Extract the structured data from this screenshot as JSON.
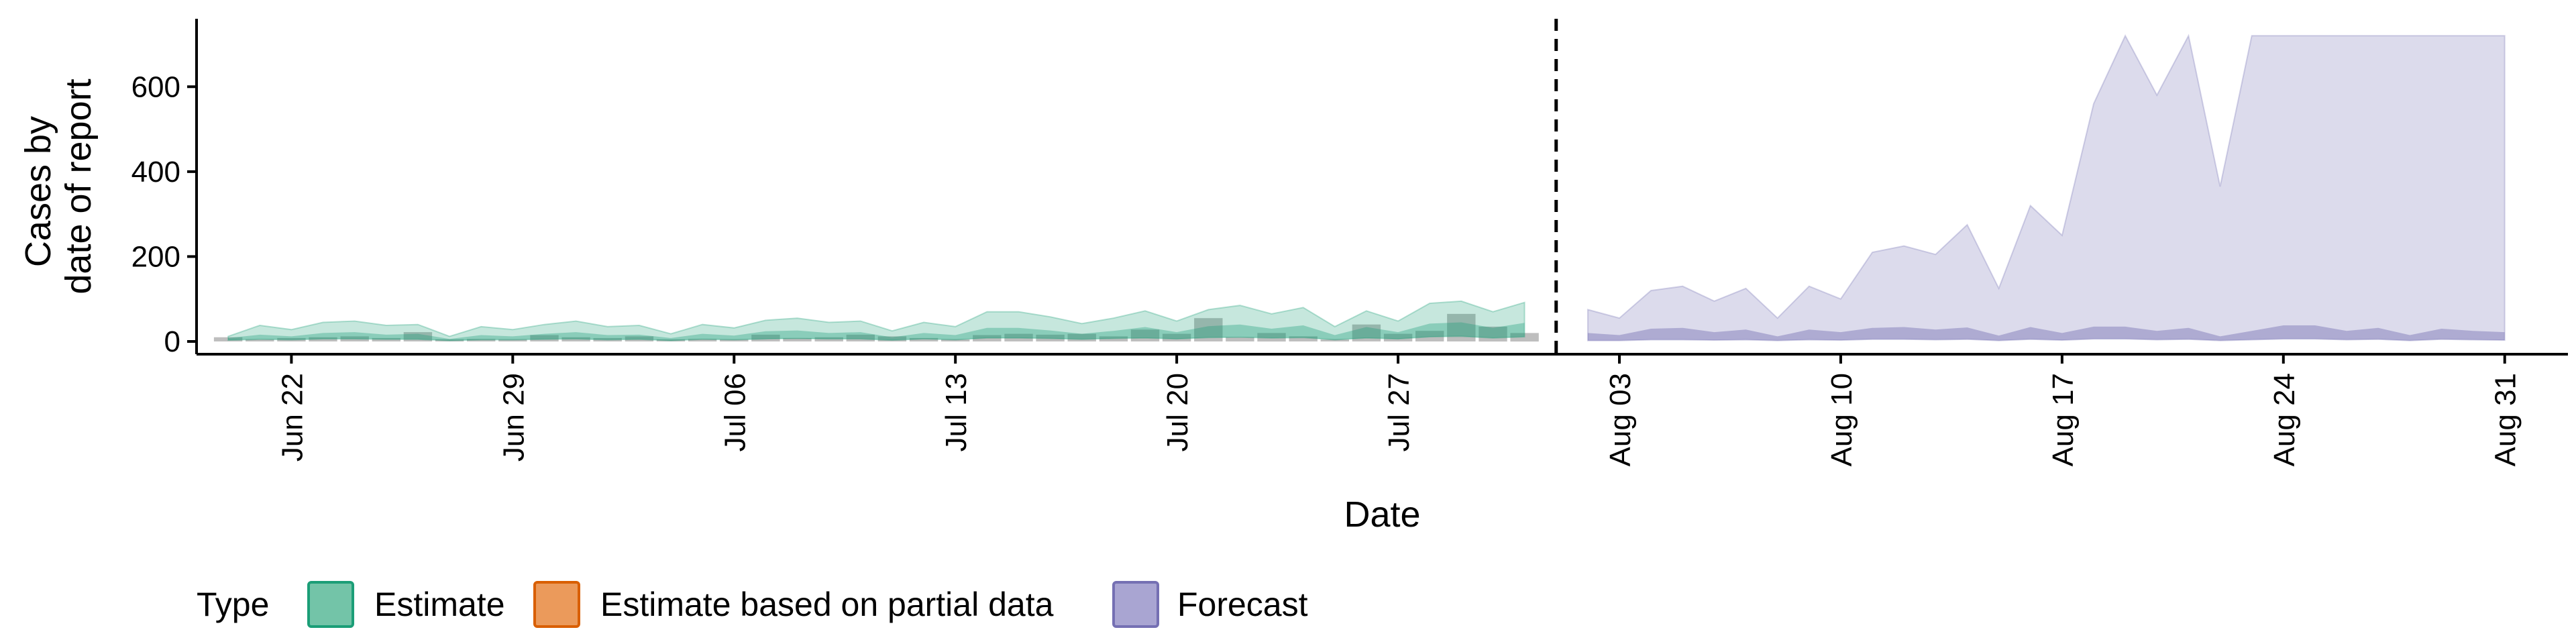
{
  "chart_data": {
    "type": "area",
    "xlabel": "Date",
    "ylabel_lines": [
      "Cases by",
      "date of report"
    ],
    "ylim": [
      -30,
      760
    ],
    "yticks": [
      0,
      200,
      400,
      600
    ],
    "x_start": "2020-06-19",
    "x_end": "2020-09-02",
    "date_ticks": [
      {
        "date": "2020-06-22",
        "label": "Jun 22"
      },
      {
        "date": "2020-06-29",
        "label": "Jun 29"
      },
      {
        "date": "2020-07-06",
        "label": "Jul 06"
      },
      {
        "date": "2020-07-13",
        "label": "Jul 13"
      },
      {
        "date": "2020-07-20",
        "label": "Jul 20"
      },
      {
        "date": "2020-07-27",
        "label": "Jul 27"
      },
      {
        "date": "2020-08-03",
        "label": "Aug 03"
      },
      {
        "date": "2020-08-10",
        "label": "Aug 10"
      },
      {
        "date": "2020-08-17",
        "label": "Aug 17"
      },
      {
        "date": "2020-08-24",
        "label": "Aug 24"
      },
      {
        "date": "2020-08-31",
        "label": "Aug 31"
      }
    ],
    "forecast_divider_date": "2020-08-01",
    "estimate": {
      "start_date": "2020-06-20",
      "upper_90": [
        12,
        38,
        28,
        45,
        48,
        38,
        40,
        12,
        35,
        28,
        40,
        48,
        35,
        38,
        18,
        40,
        32,
        50,
        55,
        45,
        48,
        25,
        45,
        35,
        70,
        70,
        58,
        42,
        55,
        72,
        48,
        75,
        85,
        65,
        80,
        35,
        72,
        48,
        90,
        95,
        70,
        92
      ],
      "upper_50": [
        8,
        16,
        12,
        20,
        22,
        16,
        18,
        6,
        15,
        12,
        18,
        22,
        15,
        16,
        8,
        18,
        14,
        24,
        26,
        20,
        22,
        10,
        20,
        15,
        32,
        32,
        26,
        18,
        25,
        34,
        22,
        36,
        40,
        30,
        38,
        15,
        34,
        22,
        42,
        45,
        32,
        44
      ],
      "lower": [
        3,
        5,
        4,
        6,
        6,
        5,
        5,
        2,
        4,
        4,
        5,
        6,
        4,
        5,
        2,
        5,
        4,
        6,
        7,
        6,
        6,
        3,
        6,
        4,
        8,
        8,
        7,
        5,
        7,
        8,
        6,
        9,
        10,
        8,
        9,
        4,
        8,
        6,
        11,
        12,
        8,
        11
      ]
    },
    "reported_cases": {
      "start_date": "2020-06-20",
      "values": [
        10,
        5,
        8,
        10,
        12,
        8,
        22,
        5,
        6,
        5,
        15,
        10,
        8,
        12,
        5,
        6,
        5,
        16,
        8,
        10,
        16,
        12,
        8,
        5,
        15,
        18,
        16,
        18,
        12,
        28,
        18,
        55,
        10,
        20,
        12,
        5,
        40,
        18,
        25,
        65,
        35,
        20
      ]
    },
    "forecast": {
      "start_date": "2020-08-02",
      "upper_90": [
        75,
        55,
        120,
        130,
        95,
        125,
        55,
        130,
        100,
        210,
        225,
        205,
        275,
        125,
        320,
        250,
        560,
        720,
        580,
        720,
        365,
        720,
        720,
        720,
        720,
        720,
        720,
        720,
        720,
        720
      ],
      "upper_50": [
        20,
        15,
        30,
        32,
        22,
        28,
        12,
        28,
        22,
        32,
        34,
        28,
        33,
        14,
        34,
        20,
        35,
        35,
        25,
        32,
        12,
        25,
        38,
        38,
        25,
        32,
        15,
        30,
        25,
        22
      ],
      "lower": [
        2,
        2,
        4,
        4,
        3,
        4,
        2,
        4,
        3,
        5,
        5,
        4,
        5,
        2,
        5,
        3,
        6,
        6,
        4,
        5,
        2,
        4,
        6,
        6,
        4,
        5,
        2,
        5,
        4,
        3
      ]
    },
    "legend": {
      "title": "Type",
      "entries": [
        {
          "label": "Estimate",
          "fill": "#73c4a8",
          "stroke": "#1b9e77"
        },
        {
          "label": "Estimate based on partial data",
          "fill": "#eb9a5b",
          "stroke": "#d95f02"
        },
        {
          "label": "Forecast",
          "fill": "#a9a5d2",
          "stroke": "#7570b3"
        }
      ]
    },
    "colors": {
      "estimate": "#1b9e77",
      "forecast": "#7570b3",
      "bars": "#6f6f6f",
      "axis": "#000000",
      "divider": "#000000"
    }
  }
}
